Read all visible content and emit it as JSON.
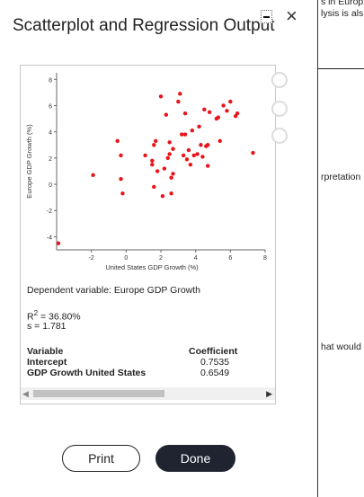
{
  "dialog": {
    "title": "Scatterplot and Regression Output",
    "close_symbol": "×"
  },
  "chart_data": {
    "type": "scatter",
    "xlabel": "United States GDP Growth (%)",
    "ylabel": "Europe GDP Growth (%)",
    "xlim": [
      -4,
      8
    ],
    "ylim": [
      -5,
      8.5
    ],
    "xticks": [
      -2,
      0,
      2,
      4,
      6,
      8
    ],
    "yticks": [
      -4,
      -2,
      0,
      2,
      4,
      6,
      8
    ],
    "point_color": "#e8141b",
    "points": [
      [
        -3.9,
        -4.5
      ],
      [
        -1.9,
        0.7
      ],
      [
        -0.5,
        3.3
      ],
      [
        -0.3,
        2.2
      ],
      [
        -0.3,
        0.4
      ],
      [
        -0.2,
        -0.7
      ],
      [
        1.1,
        2.2
      ],
      [
        1.5,
        1.8
      ],
      [
        1.5,
        1.5
      ],
      [
        1.6,
        3.0
      ],
      [
        1.7,
        3.3
      ],
      [
        1.6,
        -0.2
      ],
      [
        1.8,
        1.0
      ],
      [
        2.0,
        6.7
      ],
      [
        2.1,
        -0.9
      ],
      [
        2.2,
        1.2
      ],
      [
        2.3,
        5.3
      ],
      [
        2.4,
        2.0
      ],
      [
        2.5,
        2.3
      ],
      [
        2.5,
        3.2
      ],
      [
        2.6,
        0.5
      ],
      [
        2.6,
        -0.7
      ],
      [
        2.7,
        2.7
      ],
      [
        2.7,
        0.8
      ],
      [
        3.0,
        6.3
      ],
      [
        3.1,
        6.9
      ],
      [
        3.2,
        3.8
      ],
      [
        3.3,
        2.2
      ],
      [
        3.4,
        3.8
      ],
      [
        3.4,
        5.4
      ],
      [
        3.5,
        1.9
      ],
      [
        3.6,
        2.6
      ],
      [
        3.7,
        1.5
      ],
      [
        3.8,
        4.1
      ],
      [
        3.9,
        2.2
      ],
      [
        4.1,
        2.3
      ],
      [
        4.2,
        4.4
      ],
      [
        4.3,
        3.0
      ],
      [
        4.4,
        2.1
      ],
      [
        4.5,
        5.7
      ],
      [
        4.6,
        2.9
      ],
      [
        4.7,
        3.0
      ],
      [
        4.7,
        1.4
      ],
      [
        4.8,
        5.5
      ],
      [
        5.2,
        5.0
      ],
      [
        5.3,
        5.1
      ],
      [
        5.4,
        3.3
      ],
      [
        5.6,
        6.0
      ],
      [
        5.8,
        5.6
      ],
      [
        6.0,
        6.3
      ],
      [
        6.3,
        5.2
      ],
      [
        6.4,
        5.4
      ],
      [
        7.3,
        2.4
      ]
    ]
  },
  "output": {
    "dependent_variable": "Dependent variable: Europe GDP Growth",
    "r2_prefix": "R",
    "r2_sup": "2",
    "r2_value": " = 36.80%",
    "s_line": "s = 1.781",
    "table": {
      "col_variable": "Variable",
      "col_coefficient": "Coefficient",
      "rows": [
        {
          "variable": "Intercept",
          "coefficient": "0.7535"
        },
        {
          "variable": "GDP Growth United States",
          "coefficient": "0.6549"
        }
      ]
    }
  },
  "buttons": {
    "print": "Print",
    "done": "Done"
  },
  "background_pane": {
    "line1": "s in Europ",
    "line2": "lysis is als",
    "line3": "rpretation",
    "line4": "hat would"
  }
}
